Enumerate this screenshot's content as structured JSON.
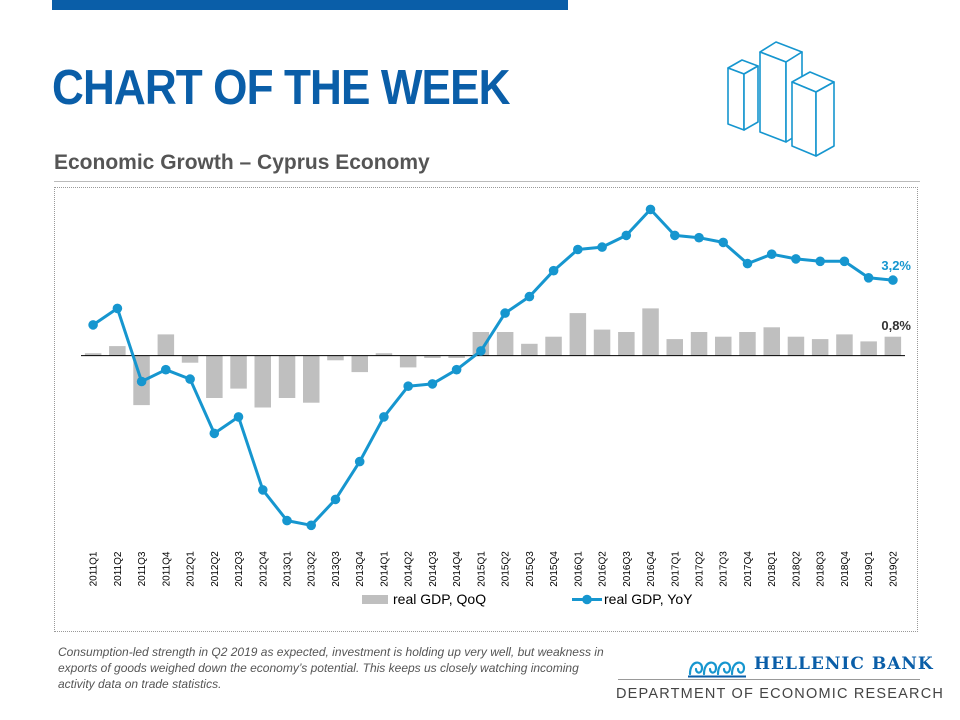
{
  "header": {
    "title": "CHART OF THE WEEK",
    "subtitle": "Economic Growth – Cyprus Economy"
  },
  "colors": {
    "brand_blue": "#0a5ea8",
    "yoy_line": "#1696cf",
    "qoq_bars": "#bfbfbf"
  },
  "icons": {
    "header_graphic": "buildings-icon",
    "logo": "hellenic-bank-emblem-icon"
  },
  "chart_data": {
    "type": "bar",
    "categories": [
      "2011Q1",
      "2011Q2",
      "2011Q3",
      "2011Q4",
      "2012Q1",
      "2012Q2",
      "2012Q3",
      "2012Q4",
      "2013Q1",
      "2013Q2",
      "2013Q3",
      "2013Q4",
      "2014Q1",
      "2014Q2",
      "2014Q3",
      "2014Q4",
      "2015Q1",
      "2015Q2",
      "2015Q3",
      "2015Q4",
      "2016Q1",
      "2016Q2",
      "2016Q3",
      "2016Q4",
      "2017Q1",
      "2017Q2",
      "2017Q3",
      "2017Q4",
      "2018Q1",
      "2018Q2",
      "2018Q3",
      "2018Q4",
      "2019Q1",
      "2019Q2"
    ],
    "series": [
      {
        "name": "real GDP, QoQ",
        "kind": "bar",
        "values": [
          0.1,
          0.4,
          -2.1,
          0.9,
          -0.3,
          -1.8,
          -1.4,
          -2.2,
          -1.8,
          -2.0,
          -0.2,
          -0.7,
          0.1,
          -0.5,
          -0.1,
          -0.1,
          1.0,
          1.0,
          0.5,
          0.8,
          1.8,
          1.1,
          1.0,
          2.0,
          0.7,
          1.0,
          0.8,
          1.0,
          1.2,
          0.8,
          0.7,
          0.9,
          0.6,
          0.8
        ]
      },
      {
        "name": "real GDP, YoY",
        "kind": "line",
        "values": [
          1.3,
          2.0,
          -1.1,
          -0.6,
          -1.0,
          -3.3,
          -2.6,
          -5.7,
          -7.0,
          -7.2,
          -6.1,
          -4.5,
          -2.6,
          -1.3,
          -1.2,
          -0.6,
          0.2,
          1.8,
          2.5,
          3.6,
          4.5,
          4.6,
          5.1,
          6.2,
          5.1,
          5.0,
          4.8,
          3.9,
          4.3,
          4.1,
          4.0,
          4.0,
          3.3,
          3.2
        ]
      }
    ],
    "annotations": {
      "yoy_last": "3,2%",
      "qoq_last": "0,8%"
    },
    "xlabel": "",
    "ylabel": "",
    "ylim": [
      -7.4,
      6.6
    ],
    "grid": false,
    "legend_position": "bottom-center"
  },
  "footer": {
    "note": "Consumption-led strength in Q2 2019 as expected, investment is holding up very well, but weakness in exports of goods weighed down the economy’s potential. This keeps us closely watching incoming activity data on trade statistics.",
    "bank_name": "HELLENIC BANK",
    "department": "DEPARTMENT OF ECONOMIC RESEARCH"
  }
}
